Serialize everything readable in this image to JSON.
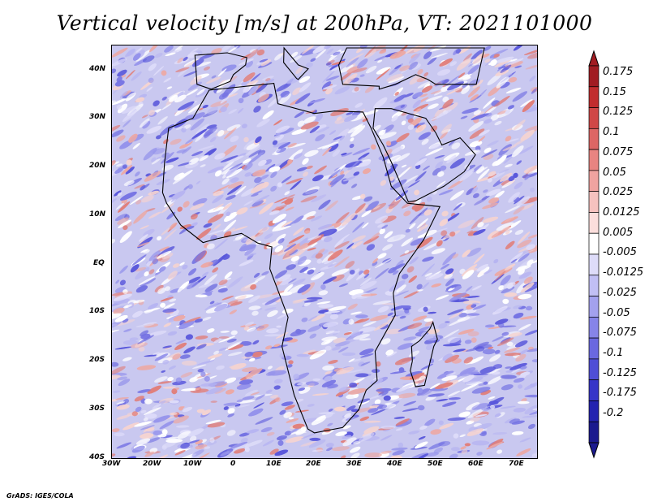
{
  "title": "Vertical velocity [m/s] at 200hPa, VT: 2021101000",
  "credit": "GrADS: IGES/COLA",
  "map": {
    "lon_range": [
      -30,
      75
    ],
    "lat_range": [
      -40,
      45
    ],
    "lon_ticks": [
      "30W",
      "20W",
      "10W",
      "0",
      "10E",
      "20E",
      "30E",
      "40E",
      "50E",
      "60E",
      "70E"
    ],
    "lat_ticks": [
      "40N",
      "30N",
      "20N",
      "10N",
      "EQ",
      "10S",
      "20S",
      "30S",
      "40S"
    ],
    "land_outline_color": "#000000"
  },
  "colorbar": {
    "labels": [
      "0.175",
      "0.15",
      "0.125",
      "0.1",
      "0.075",
      "0.05",
      "0.025",
      "0.0125",
      "0.005",
      "-0.005",
      "-0.0125",
      "-0.025",
      "-0.05",
      "-0.075",
      "-0.1",
      "-0.125",
      "-0.175",
      "-0.2"
    ],
    "colors": [
      "#a11c22",
      "#c12d2e",
      "#d04746",
      "#dd6664",
      "#e88481",
      "#f0a3a0",
      "#f6c2bf",
      "#fbdedc",
      "#ffffff",
      "#dedcf9",
      "#c1bff4",
      "#a3a1ee",
      "#8684e8",
      "#6a68e0",
      "#4f4ed6",
      "#3635c8",
      "#2423b0",
      "#1b1a8e"
    ]
  }
}
